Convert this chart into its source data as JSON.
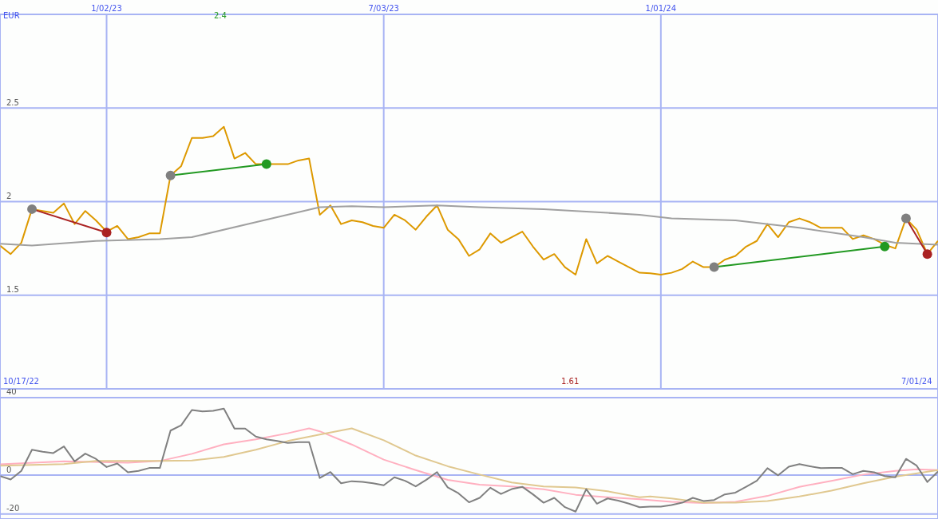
{
  "chart_data": [
    {
      "type": "line",
      "ylabel": "EUR",
      "annotations": [
        "2.4",
        "10/17/22",
        "1.61",
        "7/01/24"
      ],
      "x": [
        "2022-10-24",
        "2022-10-31",
        "2022-11-07",
        "2022-11-14",
        "2022-11-21",
        "2022-11-28",
        "2022-12-05",
        "2022-12-12",
        "2022-12-19",
        "2022-12-26",
        "2023-01-02",
        "2023-01-09",
        "2023-01-16",
        "2023-01-23",
        "2023-01-30",
        "2023-02-06",
        "2023-02-13",
        "2023-02-20",
        "2023-02-27",
        "2023-03-06",
        "2023-03-13",
        "2023-03-20",
        "2023-03-27",
        "2023-04-03",
        "2023-04-10",
        "2023-04-17",
        "2023-04-24",
        "2023-05-01",
        "2023-05-08",
        "2023-05-15",
        "2023-05-22",
        "2023-05-29",
        "2023-06-05",
        "2023-06-12",
        "2023-06-19",
        "2023-06-26",
        "2023-07-03",
        "2023-07-10",
        "2023-07-17",
        "2023-07-24",
        "2023-07-31",
        "2023-08-07",
        "2023-08-14",
        "2023-08-21",
        "2023-08-28",
        "2023-09-04",
        "2023-09-11",
        "2023-09-18",
        "2023-09-25",
        "2023-10-02",
        "2023-10-09",
        "2023-10-16",
        "2023-10-23",
        "2023-10-30",
        "2023-11-06",
        "2023-11-13",
        "2023-11-20",
        "2023-11-27",
        "2023-12-04",
        "2023-12-11",
        "2023-12-18",
        "2023-12-25",
        "2024-01-01",
        "2024-01-08",
        "2024-01-15",
        "2024-01-22",
        "2024-01-29",
        "2024-02-05",
        "2024-02-12",
        "2024-02-19",
        "2024-02-26",
        "2024-03-04",
        "2024-03-11",
        "2024-03-18",
        "2024-03-25",
        "2024-04-01",
        "2024-04-08",
        "2024-04-15",
        "2024-04-22",
        "2024-04-29",
        "2024-05-06",
        "2024-05-13",
        "2024-05-20",
        "2024-05-27",
        "2024-06-03",
        "2024-06-10",
        "2024-06-17",
        "2024-06-24",
        "2024-07-01"
      ],
      "series": [
        {
          "color": "#dd9900",
          "values": [
            1.765,
            1.72,
            1.78,
            1.96,
            1.95,
            1.94,
            1.99,
            1.88,
            1.95,
            1.9,
            1.84,
            1.87,
            1.8,
            1.81,
            1.83,
            1.83,
            2.14,
            2.19,
            2.34,
            2.34,
            2.35,
            2.4,
            2.23,
            2.26,
            2.2,
            2.2,
            2.2,
            2.2,
            2.22,
            2.23,
            1.93,
            1.98,
            1.88,
            1.9,
            1.89,
            1.87,
            1.86,
            1.93,
            1.9,
            1.85,
            1.92,
            1.98,
            1.85,
            1.8,
            1.71,
            1.745,
            1.83,
            1.78,
            1.81,
            1.84,
            1.76,
            1.69,
            1.72,
            1.65,
            1.61,
            1.8,
            1.67,
            1.71,
            1.68,
            1.65,
            1.62,
            1.617,
            1.61,
            1.62,
            1.64,
            1.68,
            1.65,
            1.65,
            1.69,
            1.71,
            1.76,
            1.79,
            1.88,
            1.81,
            1.89,
            1.91,
            1.89,
            1.86,
            1.86,
            1.86,
            1.8,
            1.82,
            1.8,
            1.77,
            1.75,
            1.91,
            1.85,
            1.72,
            1.79
          ]
        },
        {
          "color": "#a0a0a0",
          "x": [
            "2022-10-24",
            "2022-11-14",
            "2022-12-26",
            "2023-02-06",
            "2023-02-27",
            "2023-04-10",
            "2023-05-22",
            "2023-06-12",
            "2023-07-03",
            "2023-08-07",
            "2023-09-04",
            "2023-10-16",
            "2023-11-27",
            "2023-12-18",
            "2024-01-08",
            "2024-02-19",
            "2024-04-01",
            "2024-05-13",
            "2024-06-03",
            "2024-07-01"
          ],
          "values": [
            1.775,
            1.765,
            1.79,
            1.8,
            1.81,
            1.89,
            1.97,
            1.975,
            1.97,
            1.98,
            1.97,
            1.96,
            1.94,
            1.93,
            1.91,
            1.9,
            1.86,
            1.81,
            1.78,
            1.77
          ]
        },
        {
          "color": "#aa2222",
          "marker": "circle",
          "colors": [
            "#808080",
            "#aa2222"
          ],
          "x": [
            "2022-11-14",
            "2023-01-02"
          ],
          "values": [
            1.96,
            1.835
          ]
        },
        {
          "color": "#229922",
          "marker": "circle",
          "colors": [
            "#808080",
            "#229922"
          ],
          "x": [
            "2023-02-13",
            "2023-04-17"
          ],
          "values": [
            2.14,
            2.2
          ]
        },
        {
          "color": "#229922",
          "marker": "circle",
          "colors": [
            "#808080",
            "#229922"
          ],
          "x": [
            "2024-02-05",
            "2024-05-27"
          ],
          "values": [
            1.65,
            1.76
          ]
        },
        {
          "color": "#aa2222",
          "marker": "circle",
          "colors": [
            "#808080",
            "#aa2222"
          ],
          "x": [
            "2024-06-10",
            "2024-06-24"
          ],
          "values": [
            1.91,
            1.72
          ]
        }
      ],
      "xlim": [
        "2022-10-24",
        "2024-07-01"
      ],
      "xticks": [
        {
          "value": "2023-01-02",
          "label": "1/02/23"
        },
        {
          "value": "2023-07-03",
          "label": "7/03/23"
        },
        {
          "value": "2024-01-01",
          "label": "1/01/24"
        }
      ],
      "ylim": [
        1,
        3
      ],
      "yticks": [
        1.5,
        2,
        2.5
      ],
      "grid": true,
      "marker": "none",
      "line_style": "solid"
    },
    {
      "type": "line",
      "tick_labels": "y",
      "x": [
        "2022-10-24",
        "2022-10-31",
        "2022-11-07",
        "2022-11-14",
        "2022-11-21",
        "2022-11-28",
        "2022-12-05",
        "2022-12-12",
        "2022-12-19",
        "2022-12-26",
        "2023-01-02",
        "2023-01-09",
        "2023-01-16",
        "2023-01-23",
        "2023-01-30",
        "2023-02-06",
        "2023-02-13",
        "2023-02-20",
        "2023-02-27",
        "2023-03-06",
        "2023-03-13",
        "2023-03-20",
        "2023-03-27",
        "2023-04-03",
        "2023-04-10",
        "2023-04-17",
        "2023-04-24",
        "2023-05-01",
        "2023-05-08",
        "2023-05-15",
        "2023-05-22",
        "2023-05-29",
        "2023-06-05",
        "2023-06-12",
        "2023-06-19",
        "2023-06-26",
        "2023-07-03",
        "2023-07-10",
        "2023-07-17",
        "2023-07-24",
        "2023-07-31",
        "2023-08-07",
        "2023-08-14",
        "2023-08-21",
        "2023-08-28",
        "2023-09-04",
        "2023-09-11",
        "2023-09-18",
        "2023-09-25",
        "2023-10-02",
        "2023-10-09",
        "2023-10-16",
        "2023-10-23",
        "2023-10-30",
        "2023-11-06",
        "2023-11-13",
        "2023-11-20",
        "2023-11-27",
        "2023-12-04",
        "2023-12-11",
        "2023-12-18",
        "2023-12-25",
        "2024-01-01",
        "2024-01-08",
        "2024-01-15",
        "2024-01-22",
        "2024-01-29",
        "2024-02-05",
        "2024-02-12",
        "2024-02-19",
        "2024-02-26",
        "2024-03-04",
        "2024-03-11",
        "2024-03-18",
        "2024-03-25",
        "2024-04-01",
        "2024-04-08",
        "2024-04-15",
        "2024-04-22",
        "2024-04-29",
        "2024-05-06",
        "2024-05-13",
        "2024-05-20",
        "2024-05-27",
        "2024-06-03",
        "2024-06-10",
        "2024-06-17",
        "2024-06-24",
        "2024-07-01"
      ],
      "xticks": [
        {
          "value": "2023-01-02",
          "label": null
        },
        {
          "value": "2023-07-03",
          "label": null
        },
        {
          "value": "2024-01-01",
          "label": null
        }
      ],
      "series": [
        {
          "color": "#ffb0c0",
          "x": [
            "2022-10-24",
            "2022-12-05",
            "2023-01-16",
            "2023-02-06",
            "2023-02-27",
            "2023-03-20",
            "2023-04-10",
            "2023-05-01",
            "2023-05-15",
            "2023-05-22",
            "2023-06-12",
            "2023-07-03",
            "2023-07-24",
            "2023-08-14",
            "2023-09-04",
            "2023-09-25",
            "2023-10-16",
            "2023-11-06",
            "2023-11-27",
            "2023-12-18",
            "2024-01-08",
            "2024-01-29",
            "2024-02-19",
            "2024-03-11",
            "2024-04-01",
            "2024-04-22",
            "2024-05-13",
            "2024-06-03",
            "2024-06-17",
            "2024-07-01"
          ],
          "values": [
            5.6,
            7.1,
            6.4,
            7.3,
            11.0,
            15.9,
            18.5,
            21.6,
            24.1,
            22.6,
            15.8,
            8.0,
            2.6,
            -2.4,
            -4.9,
            -5.8,
            -7.3,
            -10.1,
            -11.4,
            -12.4,
            -13.7,
            -14.4,
            -13.7,
            -10.7,
            -6.0,
            -2.9,
            0.3,
            2.2,
            3.0,
            2.6
          ]
        },
        {
          "color": "#e0c890",
          "x": [
            "2022-10-24",
            "2022-12-05",
            "2022-12-26",
            "2023-02-06",
            "2023-02-27",
            "2023-03-20",
            "2023-04-10",
            "2023-05-01",
            "2023-05-22",
            "2023-06-12",
            "2023-07-03",
            "2023-07-24",
            "2023-08-14",
            "2023-09-04",
            "2023-09-25",
            "2023-10-16",
            "2023-11-06",
            "2023-11-27",
            "2023-12-18",
            "2023-12-25",
            "2024-01-08",
            "2024-01-29",
            "2024-02-19",
            "2024-03-11",
            "2024-04-01",
            "2024-04-22",
            "2024-05-13",
            "2024-06-03",
            "2024-07-01"
          ],
          "values": [
            4.9,
            5.7,
            7.3,
            7.3,
            7.6,
            9.4,
            13.1,
            17.6,
            20.9,
            24.1,
            18.0,
            10.1,
            4.6,
            0.3,
            -3.8,
            -5.8,
            -6.3,
            -8.3,
            -11.4,
            -11.0,
            -12.0,
            -14.2,
            -14.2,
            -13.3,
            -11.0,
            -8.0,
            -4.2,
            -0.8,
            2.6
          ]
        },
        {
          "color": "#808080",
          "values": [
            -0.5,
            -2.2,
            2.2,
            13.1,
            12.1,
            11.4,
            14.8,
            7.1,
            11.1,
            8.4,
            4.2,
            6.0,
            1.5,
            2.2,
            3.7,
            3.7,
            23.0,
            25.7,
            33.6,
            32.9,
            33.2,
            34.3,
            24.0,
            24.0,
            19.9,
            18.5,
            17.6,
            16.6,
            17.0,
            17.0,
            -1.5,
            1.6,
            -4.2,
            -3.1,
            -3.5,
            -4.2,
            -5.2,
            -1.1,
            -2.9,
            -5.8,
            -2.4,
            1.6,
            -6.3,
            -9.3,
            -14.0,
            -11.7,
            -6.5,
            -9.7,
            -7.2,
            -6.0,
            -9.9,
            -14.2,
            -11.7,
            -16.5,
            -18.8,
            -7.2,
            -14.7,
            -12.0,
            -13.1,
            -14.7,
            -16.5,
            -16.2,
            -16.2,
            -15.4,
            -14.2,
            -11.7,
            -13.3,
            -12.8,
            -9.9,
            -9.0,
            -6.0,
            -2.9,
            3.6,
            -0.1,
            4.4,
            5.7,
            4.6,
            3.6,
            3.7,
            3.7,
            0.5,
            2.2,
            1.5,
            -0.5,
            -1.1,
            8.4,
            4.9,
            -3.5,
            1.9
          ]
        }
      ],
      "xlim": [
        "2022-10-24",
        "2024-07-01"
      ],
      "ylim": [
        -22.6,
        44.5
      ],
      "yticks": [
        -20,
        0,
        40
      ],
      "grid": true,
      "marker": "none",
      "line_style": "solid"
    }
  ]
}
